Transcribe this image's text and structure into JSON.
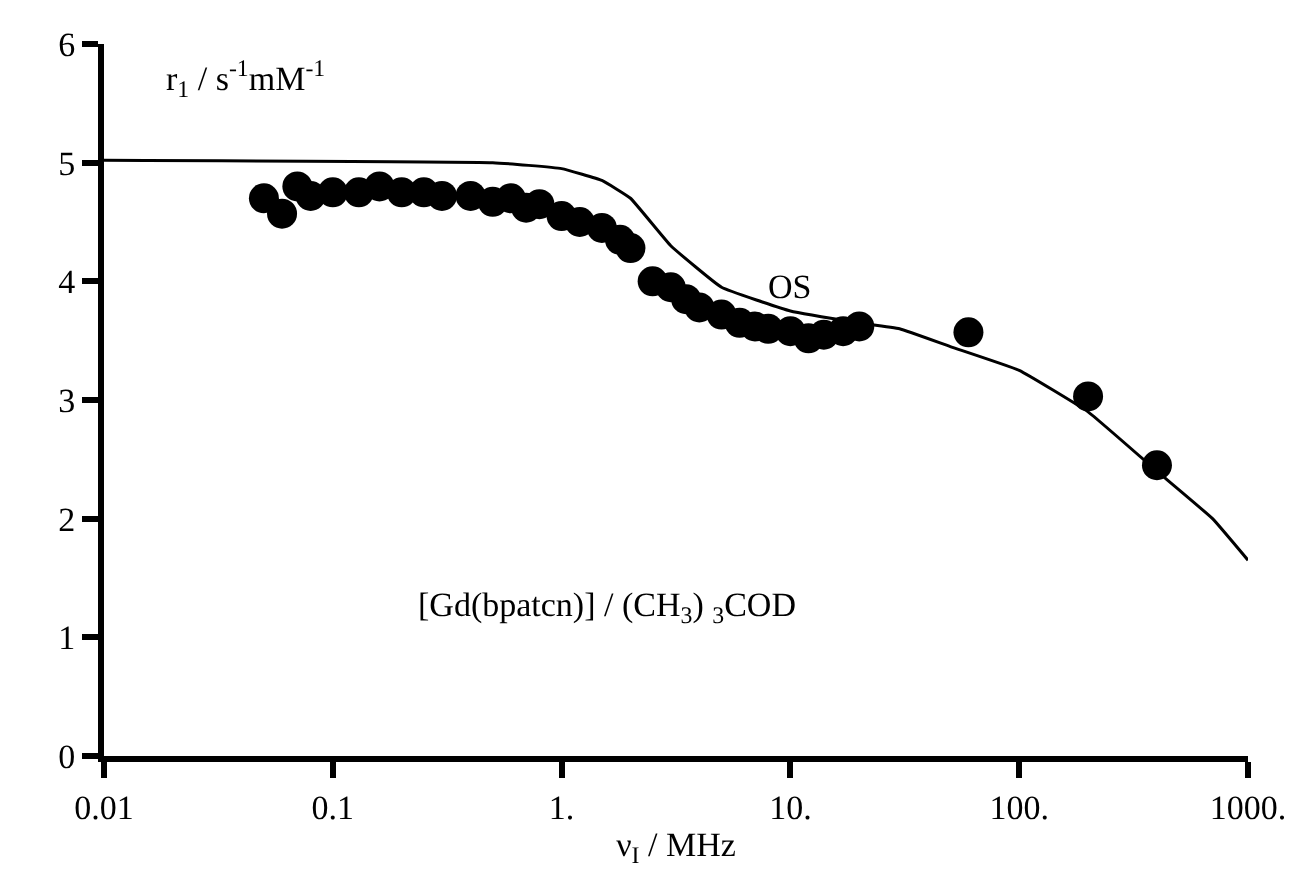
{
  "chart_data": {
    "type": "scatter",
    "ylabel": "r$_{1}$ / s$^{-1}$mM$^{-1}$",
    "xlabel": "ν$_{I}$ / MHz",
    "annotations": [
      "OS",
      "[Gd(bpatcn)] / (CH$_{3}$) $_{3}$COD"
    ],
    "log": "x",
    "marker": "circle",
    "xlim": [
      0.01,
      1000
    ],
    "xticks": [
      0.01,
      0.1,
      {
        "value": 1,
        "label": "1."
      },
      {
        "value": 10,
        "label": "10."
      },
      {
        "value": 100,
        "label": "100."
      },
      {
        "value": 1000,
        "label": "1000."
      }
    ],
    "ylim": [
      0,
      6
    ],
    "yticks": [
      0,
      1,
      2,
      3,
      4,
      5,
      6
    ],
    "series": [
      {
        "type": "line",
        "color": "#000000",
        "marker": "none",
        "x": [
          0.01,
          0.5,
          1,
          1.5,
          2,
          3,
          5,
          10,
          20,
          30,
          50,
          100,
          200,
          400,
          700,
          1000
        ],
        "values": [
          5.02,
          5.0,
          4.95,
          4.85,
          4.7,
          4.3,
          3.95,
          3.75,
          3.65,
          3.6,
          3.45,
          3.25,
          2.9,
          2.4,
          2.0,
          1.65
        ]
      },
      {
        "color": "#000000",
        "x": [
          0.05,
          0.06,
          0.07,
          0.08,
          0.1,
          0.13,
          0.16,
          0.2,
          0.25,
          0.3,
          0.4,
          0.5,
          0.6,
          0.7,
          0.8,
          1.0,
          1.2,
          1.5,
          1.8,
          2.0,
          2.5,
          3.0,
          3.5,
          4,
          5,
          6,
          7,
          8,
          10,
          12,
          14,
          17,
          20,
          60,
          200,
          400
        ],
        "values": [
          4.7,
          4.57,
          4.8,
          4.72,
          4.75,
          4.75,
          4.8,
          4.75,
          4.75,
          4.72,
          4.72,
          4.67,
          4.7,
          4.62,
          4.65,
          4.55,
          4.5,
          4.45,
          4.35,
          4.28,
          4.0,
          3.95,
          3.85,
          3.78,
          3.72,
          3.65,
          3.62,
          3.6,
          3.58,
          3.52,
          3.55,
          3.58,
          3.62,
          3.57,
          3.03,
          2.45
        ]
      }
    ]
  }
}
